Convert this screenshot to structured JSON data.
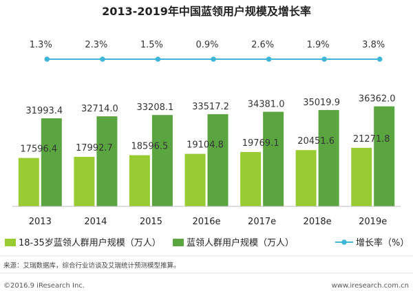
{
  "chart_data": {
    "type": "bar",
    "title": "2013-2019年中国蓝领用户规模及增长率",
    "categories": [
      "2013",
      "2014",
      "2015",
      "2016e",
      "2017e",
      "2018e",
      "2019e"
    ],
    "series": [
      {
        "name": "18-35岁蓝领人群用户规模（万人）",
        "kind": "bar",
        "color": "#99cc33",
        "values": [
          17596.4,
          17992.7,
          18596.5,
          19104.8,
          19769.1,
          20451.6,
          21271.8
        ],
        "labels": [
          "17596.4",
          "17992.7",
          "18596.5",
          "19104.8",
          "19769.1",
          "20451.6",
          "21271.8"
        ]
      },
      {
        "name": "蓝领人群用户规模（万人）",
        "kind": "bar",
        "color": "#5aa540",
        "values": [
          31993.4,
          32714.0,
          33208.1,
          33517.2,
          34381.0,
          35019.9,
          36362.0
        ],
        "labels": [
          "31993.4",
          "32714.0",
          "33208.1",
          "33517.2",
          "34381.0",
          "35019.9",
          "36362.0"
        ]
      },
      {
        "name": "增长率（%）",
        "kind": "line",
        "color": "#3fb6d8",
        "values": [
          1.3,
          2.3,
          1.5,
          0.9,
          2.6,
          1.9,
          3.8
        ],
        "labels": [
          "1.3%",
          "2.3%",
          "1.5%",
          "0.9%",
          "2.6%",
          "1.9%",
          "3.8%"
        ]
      }
    ],
    "ylim": [
      0,
      40000
    ],
    "xlabel": "",
    "ylabel": "",
    "legend_position": "bottom",
    "grid": false
  },
  "source_text": "来源：艾瑞数据库，综合行业访谈及艾瑞统计预测模型推算。",
  "footer": {
    "copyright": "©2016.9 iResearch Inc.",
    "website": "www.iresearch.com.cn"
  }
}
